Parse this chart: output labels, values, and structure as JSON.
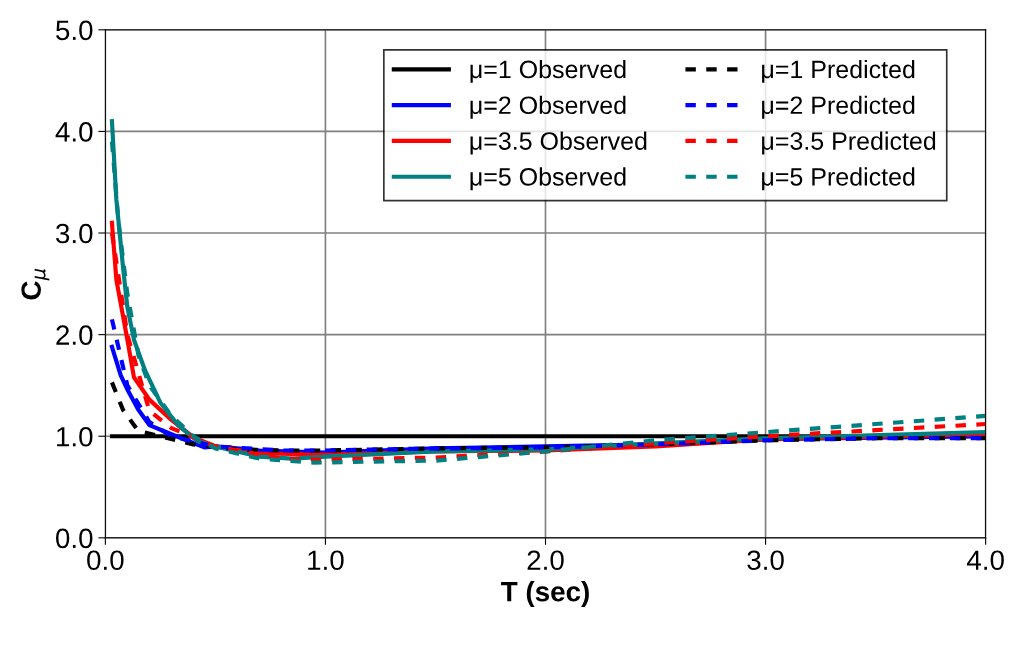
{
  "chart_data": {
    "type": "line",
    "xlabel": "T (sec)",
    "ylabel": "C$_{μ}$",
    "xlim": [
      0,
      4
    ],
    "ylim": [
      0,
      5
    ],
    "xticks": [
      {
        "value": 0,
        "label": "0.0"
      },
      {
        "value": 1,
        "label": "1.0"
      },
      {
        "value": 2,
        "label": "2.0"
      },
      {
        "value": 3,
        "label": "3.0"
      },
      {
        "value": 4,
        "label": "4.0"
      }
    ],
    "yticks": [
      {
        "value": 0,
        "label": "0.0"
      },
      {
        "value": 1,
        "label": "1.0"
      },
      {
        "value": 2,
        "label": "2.0"
      },
      {
        "value": 3,
        "label": "3.0"
      },
      {
        "value": 4,
        "label": "4.0"
      },
      {
        "value": 5,
        "label": "5.0"
      }
    ],
    "grid": true,
    "legend": "top right",
    "marker": "none",
    "series": [
      {
        "name": "μ=1 Observed",
        "color": "#000000",
        "line_style": "solid",
        "x": [
          0.03,
          4.0
        ],
        "values": [
          1.0,
          1.0
        ]
      },
      {
        "name": "μ=2 Observed",
        "color": "#0000ff",
        "line_style": "solid",
        "x": [
          0.03,
          0.07,
          0.1,
          0.15,
          0.2,
          0.3,
          0.45,
          0.5,
          0.7,
          1.0,
          1.5,
          2.0,
          2.5,
          3.0,
          4.0
        ],
        "values": [
          1.88,
          1.6,
          1.46,
          1.26,
          1.11,
          1.02,
          0.89,
          0.9,
          0.86,
          0.84,
          0.88,
          0.9,
          0.92,
          0.97,
          1.0
        ]
      },
      {
        "name": "μ=3.5 Observed",
        "color": "#ff0000",
        "line_style": "solid",
        "x": [
          0.03,
          0.05,
          0.1,
          0.13,
          0.2,
          0.3,
          0.4,
          0.5,
          0.7,
          1.0,
          1.5,
          2.0,
          2.5,
          3.0,
          4.0
        ],
        "values": [
          3.1,
          2.54,
          1.95,
          1.58,
          1.36,
          1.16,
          0.99,
          0.9,
          0.83,
          0.82,
          0.85,
          0.86,
          0.9,
          0.97,
          1.02
        ]
      },
      {
        "name": "μ=5 Observed",
        "color": "#008080",
        "line_style": "solid",
        "x": [
          0.03,
          0.05,
          0.08,
          0.1,
          0.13,
          0.18,
          0.25,
          0.33,
          0.42,
          0.5,
          0.7,
          0.85,
          1.0,
          1.5,
          2.0,
          2.5,
          3.0,
          4.0
        ],
        "values": [
          4.1,
          3.33,
          2.67,
          2.27,
          1.95,
          1.65,
          1.33,
          1.11,
          0.95,
          0.9,
          0.8,
          0.78,
          0.8,
          0.85,
          0.87,
          0.93,
          0.98,
          1.04
        ]
      },
      {
        "name": "μ=1 Predicted",
        "color": "#000000",
        "line_style": "dashed",
        "x": [
          0.03,
          0.08,
          0.15,
          0.25,
          0.4,
          0.6,
          0.8,
          1.0,
          1.5,
          2.0,
          2.5,
          3.0,
          3.5,
          4.0
        ],
        "values": [
          1.53,
          1.26,
          1.05,
          1.0,
          0.92,
          0.87,
          0.86,
          0.86,
          0.88,
          0.89,
          0.92,
          0.96,
          0.98,
          0.98
        ]
      },
      {
        "name": "μ=2 Predicted",
        "color": "#0000ff",
        "line_style": "dashed",
        "x": [
          0.03,
          0.1,
          0.2,
          0.3,
          0.5,
          0.8,
          1.0,
          1.5,
          2.0,
          2.5,
          3.0,
          3.5,
          4.0
        ],
        "values": [
          2.15,
          1.5,
          1.14,
          1.0,
          0.9,
          0.86,
          0.86,
          0.88,
          0.89,
          0.92,
          0.96,
          0.98,
          0.98
        ]
      },
      {
        "name": "μ=3.5 Predicted",
        "color": "#ff0000",
        "line_style": "dashed",
        "x": [
          0.03,
          0.1,
          0.2,
          0.3,
          0.5,
          0.8,
          1.0,
          1.5,
          2.0,
          2.5,
          3.0,
          3.5,
          4.0
        ],
        "values": [
          3.0,
          2.0,
          1.25,
          1.08,
          0.9,
          0.78,
          0.77,
          0.79,
          0.85,
          0.93,
          1.0,
          1.06,
          1.12
        ]
      },
      {
        "name": "μ=5 Predicted",
        "color": "#008080",
        "line_style": "dashed",
        "x": [
          0.03,
          0.06,
          0.1,
          0.15,
          0.2,
          0.3,
          0.4,
          0.5,
          0.7,
          0.95,
          1.2,
          1.5,
          2.0,
          2.5,
          3.0,
          3.5,
          4.0
        ],
        "values": [
          3.9,
          3.1,
          2.4,
          1.8,
          1.5,
          1.2,
          1.0,
          0.88,
          0.78,
          0.74,
          0.75,
          0.76,
          0.85,
          0.96,
          1.04,
          1.12,
          1.2
        ]
      }
    ]
  }
}
